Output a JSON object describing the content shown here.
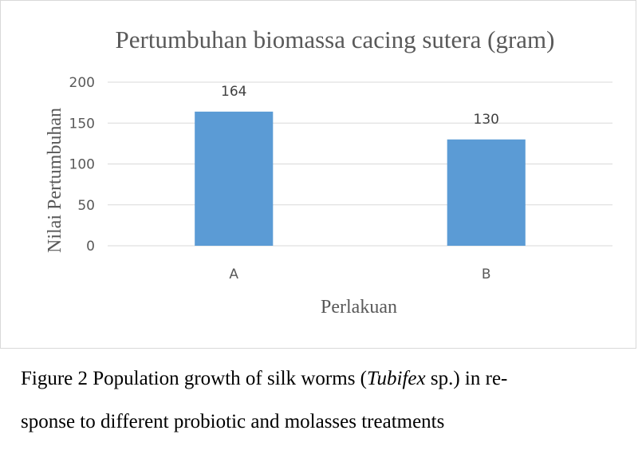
{
  "chart_data": {
    "type": "bar",
    "title": "Pertumbuhan biomassa cacing sutera (gram)",
    "xlabel": "Perlakuan",
    "ylabel": "Nilai Pertumbuhan",
    "categories": [
      "A",
      "B"
    ],
    "values": [
      164,
      130
    ],
    "data_labels": [
      "164",
      "130"
    ],
    "yticks": [
      "0",
      "50",
      "100",
      "150",
      "200"
    ],
    "ylim": [
      0,
      200
    ],
    "grid": true,
    "legend": "none",
    "bar_color": "#5b9bd5"
  },
  "caption": {
    "line1_before": "Figure 2 Population growth of silk worms (",
    "line1_italic": "Tubifex",
    "line1_after": " sp.) in re-",
    "line2": "sponse to different probiotic and molasses treatments"
  }
}
